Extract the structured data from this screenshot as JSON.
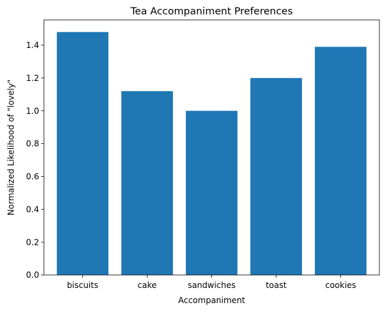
{
  "chart_data": {
    "type": "bar",
    "title": "Tea Accompaniment Preferences",
    "xlabel": "Accompaniment",
    "ylabel": "Normalized Likelihood of \"lovely\"",
    "categories": [
      "biscuits",
      "cake",
      "sandwiches",
      "toast",
      "cookies"
    ],
    "values": [
      1.48,
      1.12,
      1.0,
      1.2,
      1.39
    ],
    "ylim": [
      0,
      1.554
    ],
    "yticks": [
      0.0,
      0.2,
      0.4,
      0.6,
      0.8,
      1.0,
      1.2,
      1.4
    ],
    "ytick_labels": [
      "0.0",
      "0.2",
      "0.4",
      "0.6",
      "0.8",
      "1.0",
      "1.2",
      "1.4"
    ],
    "bar_color": "#1f77b4",
    "grid": false,
    "legend": "none"
  }
}
